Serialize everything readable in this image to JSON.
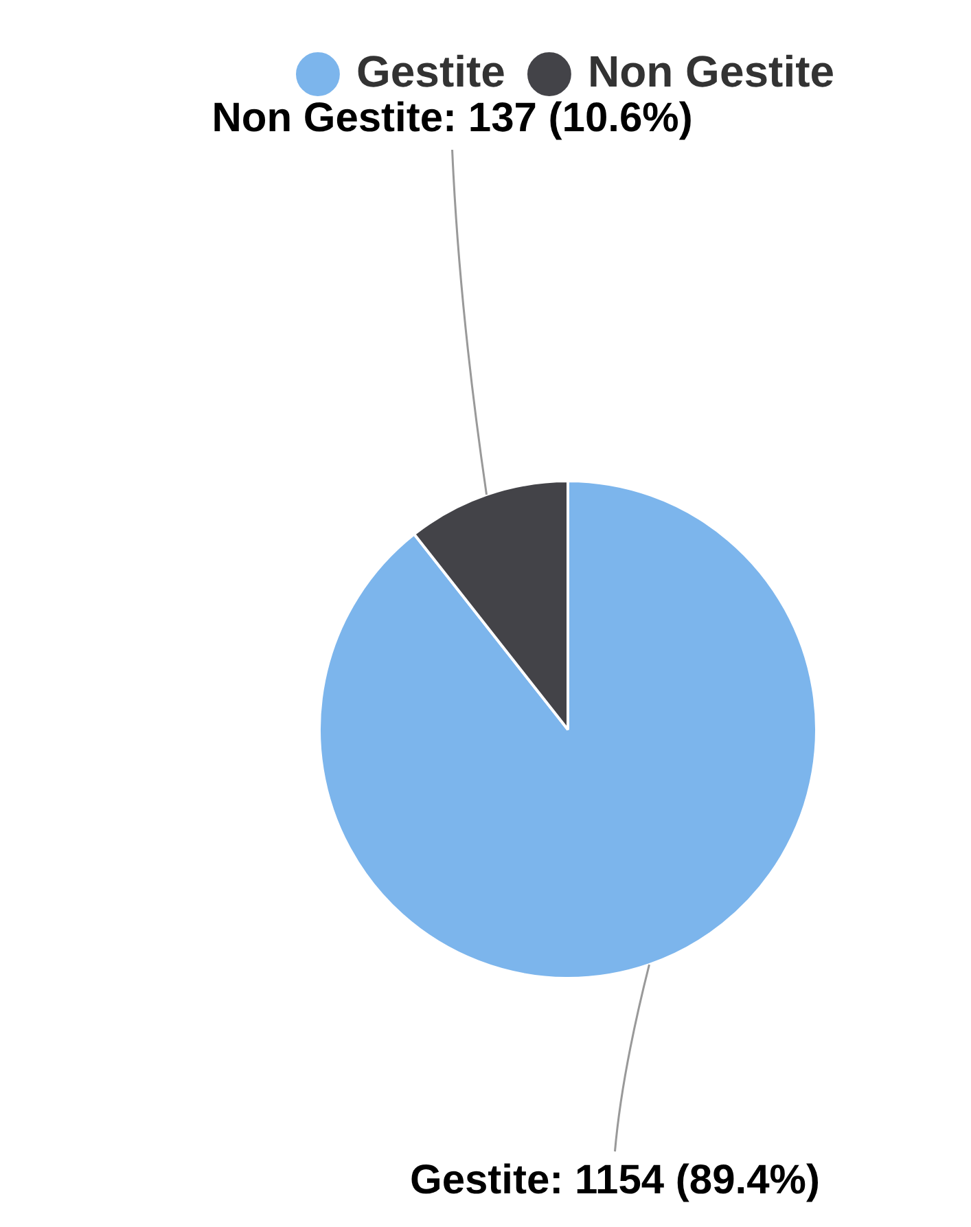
{
  "chart_data": {
    "type": "pie",
    "categories": [
      "Gestite",
      "Non Gestite"
    ],
    "values": [
      1154,
      137
    ],
    "colors": [
      "#7cb5ec",
      "#434348"
    ],
    "value_labels": [
      "Gestite: 1154 (89.4%)",
      "Non Gestite: 137 (10.6%)"
    ],
    "legend": "top"
  }
}
